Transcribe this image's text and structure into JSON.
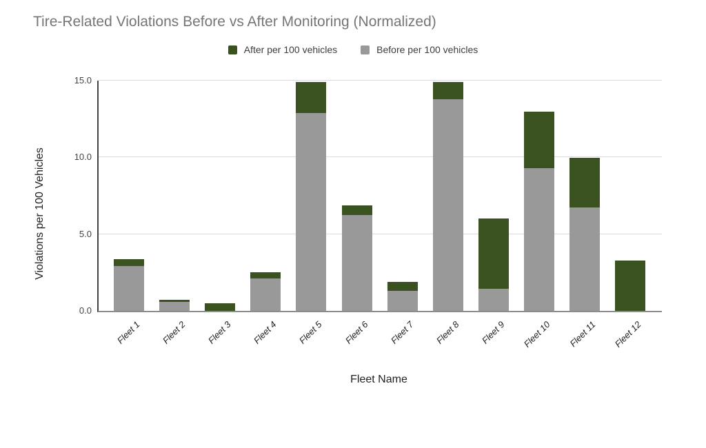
{
  "title": "Tire-Related Violations Before vs After Monitoring (Normalized)",
  "legend": [
    {
      "label": "After per 100 vehicles",
      "color": "#3a5220"
    },
    {
      "label": "Before per 100 vehicles",
      "color": "#999999"
    }
  ],
  "axes": {
    "y_title": "Violations per 100 Vehicles",
    "x_title": "Fleet Name",
    "y_ticks": [
      {
        "value": 0,
        "label": "0.0"
      },
      {
        "value": 5,
        "label": "5.0"
      },
      {
        "value": 10,
        "label": "10.0"
      },
      {
        "value": 15,
        "label": "15.0"
      }
    ]
  },
  "chart_data": {
    "type": "bar",
    "subtype": "stacked",
    "title": "Tire-Related Violations Before vs After Monitoring (Normalized)",
    "xlabel": "Fleet Name",
    "ylabel": "Violations per 100 Vehicles",
    "ylim": [
      0,
      15
    ],
    "grid": true,
    "legend_position": "top",
    "categories": [
      "Fleet 1",
      "Fleet 2",
      "Fleet 3",
      "Fleet 4",
      "Fleet 5",
      "Fleet 6",
      "Fleet 7",
      "Fleet 8",
      "Fleet 9",
      "Fleet 10",
      "Fleet 11",
      "Fleet 12"
    ],
    "series": [
      {
        "name": "Before per 100 vehicles",
        "color": "#999999",
        "values": [
          2.9,
          0.6,
          0.0,
          2.1,
          12.9,
          6.25,
          1.3,
          13.8,
          1.45,
          9.3,
          6.75,
          0.0
        ]
      },
      {
        "name": "After per 100 vehicles",
        "color": "#3a5220",
        "values": [
          0.45,
          0.1,
          0.5,
          0.4,
          2.0,
          0.6,
          0.6,
          1.1,
          4.55,
          3.7,
          3.2,
          3.3
        ]
      }
    ],
    "stack_totals": [
      3.35,
      0.7,
      0.5,
      2.5,
      14.9,
      6.85,
      1.9,
      14.9,
      6.0,
      13.0,
      9.95,
      3.3
    ]
  }
}
